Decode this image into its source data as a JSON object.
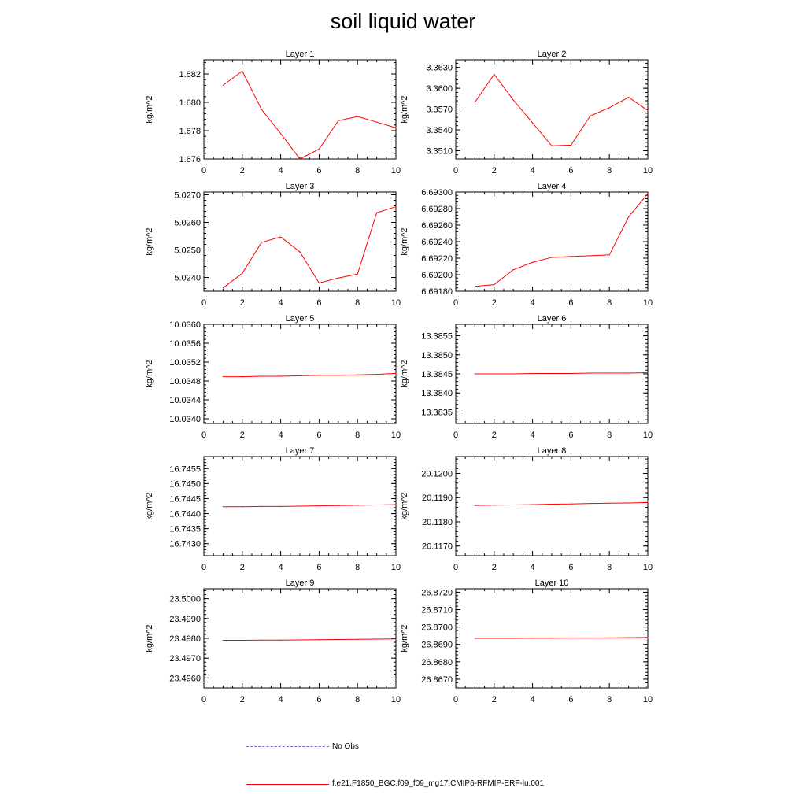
{
  "title": "soil liquid water",
  "colors": {
    "model": "#ff0000",
    "obs": "#6a6ad8",
    "axis": "#000000"
  },
  "legend": {
    "obs_label": "No Obs",
    "model_label": "f.e21.F1850_BGC.f09_f09_mg17.CMIP6-RFMIP-ERF-lu.001"
  },
  "chart_data": [
    {
      "type": "line",
      "title": "Layer 1",
      "ylabel": "kg/m^2",
      "xlim": [
        0,
        10
      ],
      "ylim": [
        1.676,
        1.683
      ],
      "xticks": [
        0,
        2,
        4,
        6,
        8,
        10
      ],
      "xtick_labels": [
        "0",
        "2",
        "4",
        "6",
        "8",
        "10"
      ],
      "yticks": [
        1.676,
        1.678,
        1.68,
        1.682
      ],
      "ytick_labels": [
        "1.676",
        "1.678",
        "1.680",
        "1.682"
      ],
      "series": [
        {
          "x": [
            1,
            2,
            3,
            4,
            5,
            6,
            7,
            8,
            9,
            10
          ],
          "y": [
            1.6812,
            1.6822,
            1.6795,
            1.6778,
            1.676,
            1.6767,
            1.6787,
            1.679,
            1.6786,
            1.6782
          ]
        }
      ]
    },
    {
      "type": "line",
      "title": "Layer 2",
      "ylabel": "kg/m^2",
      "xlim": [
        0,
        10
      ],
      "ylim": [
        3.3498,
        3.3641
      ],
      "xticks": [
        0,
        2,
        4,
        6,
        8,
        10
      ],
      "xtick_labels": [
        "0",
        "2",
        "4",
        "6",
        "8",
        "10"
      ],
      "yticks": [
        3.351,
        3.354,
        3.357,
        3.36,
        3.363
      ],
      "ytick_labels": [
        "3.3510",
        "3.3540",
        "3.3570",
        "3.3600",
        "3.3630"
      ],
      "series": [
        {
          "x": [
            1,
            2,
            3,
            4,
            5,
            6,
            7,
            8,
            9,
            10
          ],
          "y": [
            3.358,
            3.362,
            3.3583,
            3.355,
            3.3517,
            3.3518,
            3.356,
            3.3572,
            3.3587,
            3.3568
          ]
        }
      ]
    },
    {
      "type": "line",
      "title": "Layer 3",
      "ylabel": "kg/m^2",
      "xlim": [
        0,
        10
      ],
      "ylim": [
        5.0235,
        5.0271
      ],
      "xticks": [
        0,
        2,
        4,
        6,
        8,
        10
      ],
      "xtick_labels": [
        "0",
        "2",
        "4",
        "6",
        "8",
        "10"
      ],
      "yticks": [
        5.024,
        5.025,
        5.026,
        5.027
      ],
      "ytick_labels": [
        "5.0240",
        "5.0250",
        "5.0260",
        "5.0270"
      ],
      "series": [
        {
          "x": [
            1,
            2,
            3,
            4,
            5,
            6,
            7,
            8,
            9,
            10
          ],
          "y": [
            5.02362,
            5.02415,
            5.02527,
            5.02547,
            5.02493,
            5.0238,
            5.02398,
            5.02412,
            5.02635,
            5.02657
          ]
        }
      ]
    },
    {
      "type": "line",
      "title": "Layer 4",
      "ylabel": "kg/m^2",
      "xlim": [
        0,
        10
      ],
      "ylim": [
        6.6918,
        6.693
      ],
      "xticks": [
        0,
        2,
        4,
        6,
        8,
        10
      ],
      "xtick_labels": [
        "0",
        "2",
        "4",
        "6",
        "8",
        "10"
      ],
      "yticks": [
        6.6918,
        6.692,
        6.6922,
        6.6924,
        6.6926,
        6.6928,
        6.693
      ],
      "ytick_labels": [
        "6.69180",
        "6.69200",
        "6.69220",
        "6.69240",
        "6.69260",
        "6.69280",
        "6.69300"
      ],
      "series": [
        {
          "x": [
            1,
            2,
            3,
            4,
            5,
            6,
            7,
            8,
            9,
            10
          ],
          "y": [
            6.69186,
            6.69188,
            6.69206,
            6.69215,
            6.69221,
            6.69222,
            6.69223,
            6.69224,
            6.6927,
            6.69298
          ]
        }
      ]
    },
    {
      "type": "line",
      "title": "Layer 5",
      "ylabel": "kg/m^2",
      "xlim": [
        0,
        10
      ],
      "ylim": [
        10.0339,
        10.036
      ],
      "xticks": [
        0,
        2,
        4,
        6,
        8,
        10
      ],
      "xtick_labels": [
        "0",
        "2",
        "4",
        "6",
        "8",
        "10"
      ],
      "yticks": [
        10.034,
        10.0344,
        10.0348,
        10.0352,
        10.0356,
        10.036
      ],
      "ytick_labels": [
        "10.0340",
        "10.0344",
        "10.0348",
        "10.0352",
        "10.0356",
        "10.0360"
      ],
      "series": [
        {
          "x": [
            1,
            2,
            3,
            4,
            5,
            6,
            7,
            8,
            9,
            10
          ],
          "y": [
            10.03489,
            10.03489,
            10.0349,
            10.0349,
            10.03491,
            10.03492,
            10.03492,
            10.03493,
            10.03494,
            10.03496
          ]
        }
      ]
    },
    {
      "type": "line",
      "title": "Layer 6",
      "ylabel": "kg/m^2",
      "xlim": [
        0,
        10
      ],
      "ylim": [
        13.3832,
        13.3858
      ],
      "xticks": [
        0,
        2,
        4,
        6,
        8,
        10
      ],
      "xtick_labels": [
        "0",
        "2",
        "4",
        "6",
        "8",
        "10"
      ],
      "yticks": [
        13.3835,
        13.384,
        13.3845,
        13.385,
        13.3855
      ],
      "ytick_labels": [
        "13.3835",
        "13.3840",
        "13.3845",
        "13.3850",
        "13.3855"
      ],
      "series": [
        {
          "x": [
            1,
            2,
            3,
            4,
            5,
            6,
            7,
            8,
            9,
            10
          ],
          "y": [
            13.3845,
            13.3845,
            13.3845,
            13.38451,
            13.38451,
            13.38451,
            13.38452,
            13.38452,
            13.38452,
            13.38453
          ]
        }
      ]
    },
    {
      "type": "line",
      "title": "Layer 7",
      "ylabel": "kg/m^2",
      "xlim": [
        0,
        10
      ],
      "ylim": [
        16.7426,
        16.7459
      ],
      "xticks": [
        0,
        2,
        4,
        6,
        8,
        10
      ],
      "xtick_labels": [
        "0",
        "2",
        "4",
        "6",
        "8",
        "10"
      ],
      "yticks": [
        16.743,
        16.7435,
        16.744,
        16.7445,
        16.745,
        16.7455
      ],
      "ytick_labels": [
        "16.7430",
        "16.7435",
        "16.7440",
        "16.7445",
        "16.7450",
        "16.7455"
      ],
      "series": [
        {
          "x": [
            1,
            2,
            3,
            4,
            5,
            6,
            7,
            8,
            9,
            10
          ],
          "y": [
            16.74423,
            16.74423,
            16.74424,
            16.74424,
            16.74425,
            16.74426,
            16.74427,
            16.74428,
            16.74429,
            16.7443
          ]
        }
      ]
    },
    {
      "type": "line",
      "title": "Layer 8",
      "ylabel": "kg/m^2",
      "xlim": [
        0,
        10
      ],
      "ylim": [
        20.1166,
        20.1207
      ],
      "xticks": [
        0,
        2,
        4,
        6,
        8,
        10
      ],
      "xtick_labels": [
        "0",
        "2",
        "4",
        "6",
        "8",
        "10"
      ],
      "yticks": [
        20.117,
        20.118,
        20.119,
        20.12
      ],
      "ytick_labels": [
        "20.1170",
        "20.1180",
        "20.1190",
        "20.1200"
      ],
      "series": [
        {
          "x": [
            1,
            2,
            3,
            4,
            5,
            6,
            7,
            8,
            9,
            10
          ],
          "y": [
            20.11868,
            20.11869,
            20.1187,
            20.11871,
            20.11873,
            20.11874,
            20.11876,
            20.11877,
            20.11878,
            20.1188
          ]
        }
      ]
    },
    {
      "type": "line",
      "title": "Layer 9",
      "ylabel": "kg/m^2",
      "xlim": [
        0,
        10
      ],
      "ylim": [
        23.4955,
        23.5005
      ],
      "xticks": [
        0,
        2,
        4,
        6,
        8,
        10
      ],
      "xtick_labels": [
        "0",
        "2",
        "4",
        "6",
        "8",
        "10"
      ],
      "yticks": [
        23.496,
        23.497,
        23.498,
        23.499,
        23.5
      ],
      "ytick_labels": [
        "23.4960",
        "23.4970",
        "23.4980",
        "23.4990",
        "23.5000"
      ],
      "series": [
        {
          "x": [
            1,
            2,
            3,
            4,
            5,
            6,
            7,
            8,
            9,
            10
          ],
          "y": [
            23.4979,
            23.4979,
            23.49791,
            23.49791,
            23.49792,
            23.49793,
            23.49794,
            23.49795,
            23.49796,
            23.49797
          ]
        }
      ]
    },
    {
      "type": "line",
      "title": "Layer 10",
      "ylabel": "kg/m^2",
      "xlim": [
        0,
        10
      ],
      "ylim": [
        26.8665,
        26.8722
      ],
      "xticks": [
        0,
        2,
        4,
        6,
        8,
        10
      ],
      "xtick_labels": [
        "0",
        "2",
        "4",
        "6",
        "8",
        "10"
      ],
      "yticks": [
        26.867,
        26.868,
        26.869,
        26.87,
        26.871,
        26.872
      ],
      "ytick_labels": [
        "26.8670",
        "26.8680",
        "26.8690",
        "26.8700",
        "26.8710",
        "26.8720"
      ],
      "series": [
        {
          "x": [
            1,
            2,
            3,
            4,
            5,
            6,
            7,
            8,
            9,
            10
          ],
          "y": [
            26.86935,
            26.86935,
            26.86935,
            26.86936,
            26.86936,
            26.86937,
            26.86937,
            26.86938,
            26.86939,
            26.8694
          ]
        }
      ]
    }
  ]
}
